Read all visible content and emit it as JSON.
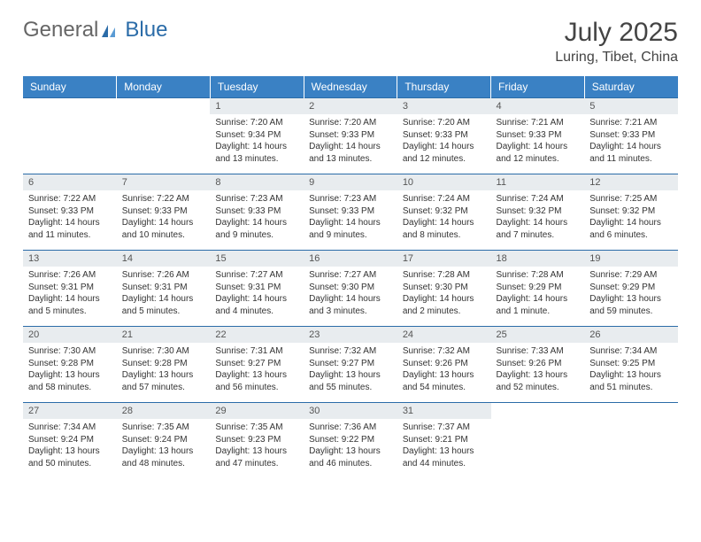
{
  "brand": {
    "part1": "General",
    "part2": "Blue"
  },
  "title": "July 2025",
  "location": "Luring, Tibet, China",
  "colors": {
    "header_bg": "#3a81c4",
    "daynum_bg": "#e8ecef",
    "border": "#2b6ca8"
  },
  "fonts": {
    "title_size": 30,
    "location_size": 16,
    "header_size": 12,
    "daynum_size": 11,
    "body_size": 10
  },
  "weekdays": [
    "Sunday",
    "Monday",
    "Tuesday",
    "Wednesday",
    "Thursday",
    "Friday",
    "Saturday"
  ],
  "weeks": [
    [
      null,
      null,
      {
        "n": "1",
        "sr": "Sunrise: 7:20 AM",
        "ss": "Sunset: 9:34 PM",
        "d1": "Daylight: 14 hours",
        "d2": "and 13 minutes."
      },
      {
        "n": "2",
        "sr": "Sunrise: 7:20 AM",
        "ss": "Sunset: 9:33 PM",
        "d1": "Daylight: 14 hours",
        "d2": "and 13 minutes."
      },
      {
        "n": "3",
        "sr": "Sunrise: 7:20 AM",
        "ss": "Sunset: 9:33 PM",
        "d1": "Daylight: 14 hours",
        "d2": "and 12 minutes."
      },
      {
        "n": "4",
        "sr": "Sunrise: 7:21 AM",
        "ss": "Sunset: 9:33 PM",
        "d1": "Daylight: 14 hours",
        "d2": "and 12 minutes."
      },
      {
        "n": "5",
        "sr": "Sunrise: 7:21 AM",
        "ss": "Sunset: 9:33 PM",
        "d1": "Daylight: 14 hours",
        "d2": "and 11 minutes."
      }
    ],
    [
      {
        "n": "6",
        "sr": "Sunrise: 7:22 AM",
        "ss": "Sunset: 9:33 PM",
        "d1": "Daylight: 14 hours",
        "d2": "and 11 minutes."
      },
      {
        "n": "7",
        "sr": "Sunrise: 7:22 AM",
        "ss": "Sunset: 9:33 PM",
        "d1": "Daylight: 14 hours",
        "d2": "and 10 minutes."
      },
      {
        "n": "8",
        "sr": "Sunrise: 7:23 AM",
        "ss": "Sunset: 9:33 PM",
        "d1": "Daylight: 14 hours",
        "d2": "and 9 minutes."
      },
      {
        "n": "9",
        "sr": "Sunrise: 7:23 AM",
        "ss": "Sunset: 9:33 PM",
        "d1": "Daylight: 14 hours",
        "d2": "and 9 minutes."
      },
      {
        "n": "10",
        "sr": "Sunrise: 7:24 AM",
        "ss": "Sunset: 9:32 PM",
        "d1": "Daylight: 14 hours",
        "d2": "and 8 minutes."
      },
      {
        "n": "11",
        "sr": "Sunrise: 7:24 AM",
        "ss": "Sunset: 9:32 PM",
        "d1": "Daylight: 14 hours",
        "d2": "and 7 minutes."
      },
      {
        "n": "12",
        "sr": "Sunrise: 7:25 AM",
        "ss": "Sunset: 9:32 PM",
        "d1": "Daylight: 14 hours",
        "d2": "and 6 minutes."
      }
    ],
    [
      {
        "n": "13",
        "sr": "Sunrise: 7:26 AM",
        "ss": "Sunset: 9:31 PM",
        "d1": "Daylight: 14 hours",
        "d2": "and 5 minutes."
      },
      {
        "n": "14",
        "sr": "Sunrise: 7:26 AM",
        "ss": "Sunset: 9:31 PM",
        "d1": "Daylight: 14 hours",
        "d2": "and 5 minutes."
      },
      {
        "n": "15",
        "sr": "Sunrise: 7:27 AM",
        "ss": "Sunset: 9:31 PM",
        "d1": "Daylight: 14 hours",
        "d2": "and 4 minutes."
      },
      {
        "n": "16",
        "sr": "Sunrise: 7:27 AM",
        "ss": "Sunset: 9:30 PM",
        "d1": "Daylight: 14 hours",
        "d2": "and 3 minutes."
      },
      {
        "n": "17",
        "sr": "Sunrise: 7:28 AM",
        "ss": "Sunset: 9:30 PM",
        "d1": "Daylight: 14 hours",
        "d2": "and 2 minutes."
      },
      {
        "n": "18",
        "sr": "Sunrise: 7:28 AM",
        "ss": "Sunset: 9:29 PM",
        "d1": "Daylight: 14 hours",
        "d2": "and 1 minute."
      },
      {
        "n": "19",
        "sr": "Sunrise: 7:29 AM",
        "ss": "Sunset: 9:29 PM",
        "d1": "Daylight: 13 hours",
        "d2": "and 59 minutes."
      }
    ],
    [
      {
        "n": "20",
        "sr": "Sunrise: 7:30 AM",
        "ss": "Sunset: 9:28 PM",
        "d1": "Daylight: 13 hours",
        "d2": "and 58 minutes."
      },
      {
        "n": "21",
        "sr": "Sunrise: 7:30 AM",
        "ss": "Sunset: 9:28 PM",
        "d1": "Daylight: 13 hours",
        "d2": "and 57 minutes."
      },
      {
        "n": "22",
        "sr": "Sunrise: 7:31 AM",
        "ss": "Sunset: 9:27 PM",
        "d1": "Daylight: 13 hours",
        "d2": "and 56 minutes."
      },
      {
        "n": "23",
        "sr": "Sunrise: 7:32 AM",
        "ss": "Sunset: 9:27 PM",
        "d1": "Daylight: 13 hours",
        "d2": "and 55 minutes."
      },
      {
        "n": "24",
        "sr": "Sunrise: 7:32 AM",
        "ss": "Sunset: 9:26 PM",
        "d1": "Daylight: 13 hours",
        "d2": "and 54 minutes."
      },
      {
        "n": "25",
        "sr": "Sunrise: 7:33 AM",
        "ss": "Sunset: 9:26 PM",
        "d1": "Daylight: 13 hours",
        "d2": "and 52 minutes."
      },
      {
        "n": "26",
        "sr": "Sunrise: 7:34 AM",
        "ss": "Sunset: 9:25 PM",
        "d1": "Daylight: 13 hours",
        "d2": "and 51 minutes."
      }
    ],
    [
      {
        "n": "27",
        "sr": "Sunrise: 7:34 AM",
        "ss": "Sunset: 9:24 PM",
        "d1": "Daylight: 13 hours",
        "d2": "and 50 minutes."
      },
      {
        "n": "28",
        "sr": "Sunrise: 7:35 AM",
        "ss": "Sunset: 9:24 PM",
        "d1": "Daylight: 13 hours",
        "d2": "and 48 minutes."
      },
      {
        "n": "29",
        "sr": "Sunrise: 7:35 AM",
        "ss": "Sunset: 9:23 PM",
        "d1": "Daylight: 13 hours",
        "d2": "and 47 minutes."
      },
      {
        "n": "30",
        "sr": "Sunrise: 7:36 AM",
        "ss": "Sunset: 9:22 PM",
        "d1": "Daylight: 13 hours",
        "d2": "and 46 minutes."
      },
      {
        "n": "31",
        "sr": "Sunrise: 7:37 AM",
        "ss": "Sunset: 9:21 PM",
        "d1": "Daylight: 13 hours",
        "d2": "and 44 minutes."
      },
      null,
      null
    ]
  ]
}
